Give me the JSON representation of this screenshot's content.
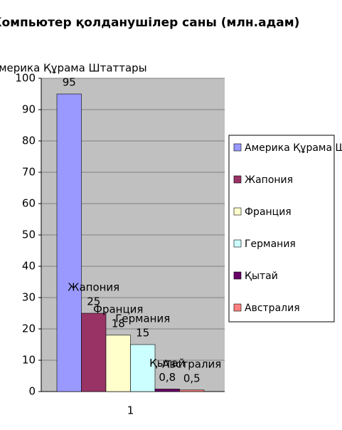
{
  "chart_data": {
    "type": "bar",
    "title": "Компьютер қолданушілер саны (млн.адам)",
    "categories": [
      "1"
    ],
    "series": [
      {
        "name": "Америка Құрама Штаттары",
        "color": "#9999ff",
        "values": [
          95
        ]
      },
      {
        "name": "Жапония",
        "color": "#993366",
        "values": [
          25
        ]
      },
      {
        "name": "Франция",
        "color": "#ffffcc",
        "values": [
          18
        ]
      },
      {
        "name": "Германия",
        "color": "#ccffff",
        "values": [
          15
        ]
      },
      {
        "name": "Қытай",
        "color": "#660066",
        "values": [
          0.8
        ],
        "value_labels": [
          "0,8"
        ]
      },
      {
        "name": "Австралия",
        "color": "#ff8080",
        "values": [
          0.5
        ],
        "value_labels": [
          "0,5"
        ]
      }
    ],
    "ylim": [
      0,
      100
    ],
    "yticks": [
      0,
      10,
      20,
      30,
      40,
      50,
      60,
      70,
      80,
      90,
      100
    ],
    "grid": true,
    "legend": "right"
  }
}
